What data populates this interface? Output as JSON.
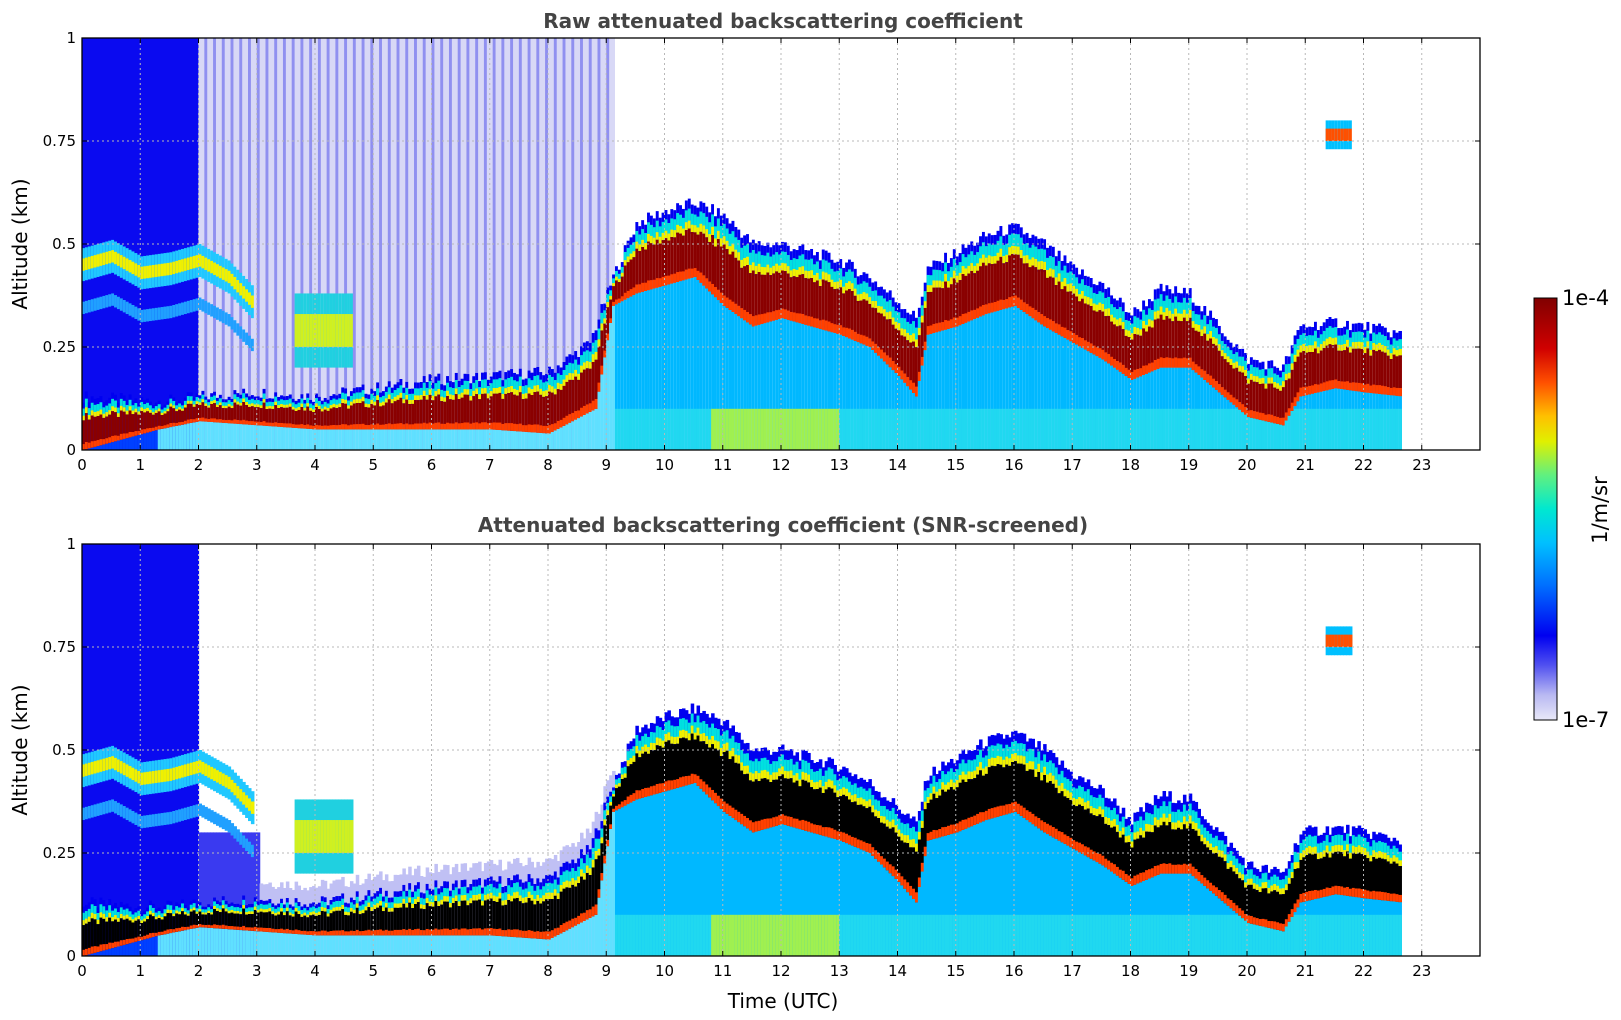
{
  "chart_data": [
    {
      "type": "heatmap",
      "title": "Raw attenuated backscattering coefficient",
      "xlabel": "",
      "ylabel": "Altitude (km)",
      "xlim": [
        0,
        24
      ],
      "ylim": [
        0,
        1
      ],
      "x_ticks": [
        0,
        1,
        2,
        3,
        4,
        5,
        6,
        7,
        8,
        9,
        10,
        11,
        12,
        13,
        14,
        15,
        16,
        17,
        18,
        19,
        20,
        21,
        22,
        23
      ],
      "y_ticks": [
        0,
        0.25,
        0.5,
        0.75,
        1
      ],
      "y_tick_labels": [
        "0",
        "0.25",
        "0.5",
        "0.75",
        "1"
      ],
      "grid": true,
      "data_end_hour": 22.65,
      "layers": {
        "cloud_top_km": [
          [
            0,
            0.13
          ],
          [
            1,
            0.12
          ],
          [
            1.5,
            0.12
          ],
          [
            2,
            0.13
          ],
          [
            3,
            0.14
          ],
          [
            4,
            0.13
          ],
          [
            5,
            0.15
          ],
          [
            6,
            0.17
          ],
          [
            7,
            0.18
          ],
          [
            8,
            0.19
          ],
          [
            8.7,
            0.26
          ],
          [
            9.1,
            0.42
          ],
          [
            9.5,
            0.55
          ],
          [
            10,
            0.58
          ],
          [
            10.5,
            0.6
          ],
          [
            11,
            0.57
          ],
          [
            11.5,
            0.5
          ],
          [
            12,
            0.5
          ],
          [
            12.5,
            0.48
          ],
          [
            13,
            0.46
          ],
          [
            13.5,
            0.42
          ],
          [
            14,
            0.36
          ],
          [
            14.3,
            0.32
          ],
          [
            14.5,
            0.44
          ],
          [
            15,
            0.48
          ],
          [
            15.5,
            0.52
          ],
          [
            16,
            0.54
          ],
          [
            16.5,
            0.5
          ],
          [
            17,
            0.44
          ],
          [
            17.5,
            0.4
          ],
          [
            18,
            0.33
          ],
          [
            18.5,
            0.39
          ],
          [
            19,
            0.38
          ],
          [
            19.5,
            0.3
          ],
          [
            20,
            0.22
          ],
          [
            20.6,
            0.2
          ],
          [
            20.9,
            0.3
          ],
          [
            21.5,
            0.31
          ],
          [
            22,
            0.3
          ],
          [
            22.65,
            0.28
          ]
        ],
        "cloud_base_km": [
          [
            0,
            0.0
          ],
          [
            1.3,
            0.05
          ],
          [
            2,
            0.07
          ],
          [
            3,
            0.06
          ],
          [
            4,
            0.05
          ],
          [
            5,
            0.05
          ],
          [
            6,
            0.05
          ],
          [
            7,
            0.05
          ],
          [
            8,
            0.04
          ],
          [
            8.8,
            0.1
          ],
          [
            9.1,
            0.35
          ],
          [
            9.5,
            0.38
          ],
          [
            10,
            0.4
          ],
          [
            10.5,
            0.42
          ],
          [
            11,
            0.35
          ],
          [
            11.5,
            0.3
          ],
          [
            12,
            0.32
          ],
          [
            12.5,
            0.3
          ],
          [
            13,
            0.28
          ],
          [
            13.5,
            0.25
          ],
          [
            14,
            0.18
          ],
          [
            14.3,
            0.13
          ],
          [
            14.5,
            0.28
          ],
          [
            15,
            0.3
          ],
          [
            15.5,
            0.33
          ],
          [
            16,
            0.35
          ],
          [
            16.5,
            0.3
          ],
          [
            17,
            0.26
          ],
          [
            17.5,
            0.22
          ],
          [
            18,
            0.17
          ],
          [
            18.5,
            0.2
          ],
          [
            19,
            0.2
          ],
          [
            19.5,
            0.14
          ],
          [
            20,
            0.08
          ],
          [
            20.6,
            0.06
          ],
          [
            20.9,
            0.13
          ],
          [
            21.5,
            0.15
          ],
          [
            22,
            0.14
          ],
          [
            22.65,
            0.13
          ]
        ],
        "aerosol_band_km": [
          [
            0,
            0.45
          ],
          [
            0.5,
            0.47
          ],
          [
            1,
            0.43
          ],
          [
            1.5,
            0.44
          ],
          [
            2,
            0.46
          ],
          [
            2.5,
            0.42
          ],
          [
            2.9,
            0.36
          ]
        ],
        "aerosol_plume_hours": [
          3.6,
          4.6
        ],
        "aerosol_plume_km": [
          0.2,
          0.38
        ],
        "high_cloud_hour": 21.55,
        "high_cloud_km": [
          0.73,
          0.8
        ]
      }
    },
    {
      "type": "heatmap",
      "title": "Attenuated backscattering coefficient (SNR-screened)",
      "xlabel": "Time (UTC)",
      "ylabel": "Altitude (km)",
      "xlim": [
        0,
        24
      ],
      "ylim": [
        0,
        1
      ],
      "x_ticks": [
        0,
        1,
        2,
        3,
        4,
        5,
        6,
        7,
        8,
        9,
        10,
        11,
        12,
        13,
        14,
        15,
        16,
        17,
        18,
        19,
        20,
        21,
        22,
        23
      ],
      "y_ticks": [
        0,
        0.25,
        0.5,
        0.75,
        1
      ],
      "y_tick_labels": [
        "0",
        "0.25",
        "0.5",
        "0.75",
        "1"
      ],
      "grid": true,
      "data_end_hour": 22.65,
      "saturated_color": "#000000"
    }
  ],
  "colorbar": {
    "label": "1/m/sr",
    "max_label": "1e-4",
    "min_label": "1e-7",
    "colormap": [
      "#e8e8f8",
      "#c8c8f4",
      "#9a9af0",
      "#5050f0",
      "#0000f0",
      "#0040ff",
      "#0080ff",
      "#00c0ff",
      "#00e8e0",
      "#40f0a0",
      "#a0f050",
      "#f0f000",
      "#ffc000",
      "#ff7000",
      "#f02000",
      "#c00000",
      "#800000"
    ]
  }
}
